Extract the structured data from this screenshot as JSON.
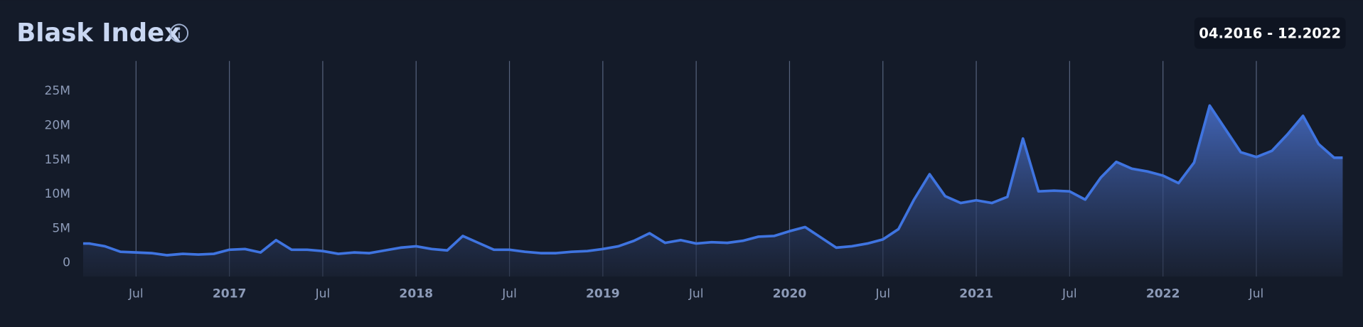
{
  "chart_data": {
    "type": "area",
    "title": "Blask Index",
    "date_range": "04.2016 - 12.2022",
    "x": [
      "2016-04",
      "2016-05",
      "2016-06",
      "2016-07",
      "2016-08",
      "2016-09",
      "2016-10",
      "2016-11",
      "2016-12",
      "2017-01",
      "2017-02",
      "2017-03",
      "2017-04",
      "2017-05",
      "2017-06",
      "2017-07",
      "2017-08",
      "2017-09",
      "2017-10",
      "2017-11",
      "2017-12",
      "2018-01",
      "2018-02",
      "2018-03",
      "2018-04",
      "2018-05",
      "2018-06",
      "2018-07",
      "2018-08",
      "2018-09",
      "2018-10",
      "2018-11",
      "2018-12",
      "2019-01",
      "2019-02",
      "2019-03",
      "2019-04",
      "2019-05",
      "2019-06",
      "2019-07",
      "2019-08",
      "2019-09",
      "2019-10",
      "2019-11",
      "2019-12",
      "2020-01",
      "2020-02",
      "2020-03",
      "2020-04",
      "2020-05",
      "2020-06",
      "2020-07",
      "2020-08",
      "2020-09",
      "2020-10",
      "2020-11",
      "2020-12",
      "2021-01",
      "2021-02",
      "2021-03",
      "2021-04",
      "2021-05",
      "2021-06",
      "2021-07",
      "2021-08",
      "2021-09",
      "2021-10",
      "2021-11",
      "2021-12",
      "2022-01",
      "2022-02",
      "2022-03",
      "2022-04",
      "2022-05",
      "2022-06",
      "2022-07",
      "2022-08",
      "2022-09",
      "2022-10",
      "2022-11",
      "2022-12"
    ],
    "series": [
      {
        "name": "Blask Index",
        "color": "#3f74e0",
        "values": [
          2800000,
          2400000,
          1600000,
          1500000,
          1400000,
          1100000,
          1300000,
          1200000,
          1300000,
          1900000,
          2000000,
          1500000,
          3300000,
          1900000,
          1900000,
          1700000,
          1300000,
          1500000,
          1400000,
          1800000,
          2200000,
          2400000,
          2000000,
          1800000,
          3900000,
          2900000,
          1900000,
          1900000,
          1600000,
          1400000,
          1400000,
          1600000,
          1700000,
          2000000,
          2400000,
          3200000,
          4300000,
          2900000,
          3300000,
          2800000,
          3000000,
          2900000,
          3200000,
          3800000,
          3900000,
          4600000,
          5200000,
          3700000,
          2200000,
          2400000,
          2800000,
          3400000,
          4900000,
          9200000,
          12900000,
          9700000,
          8700000,
          9100000,
          8700000,
          9600000,
          18100000,
          10400000,
          10500000,
          10400000,
          9200000,
          12400000,
          14700000,
          13700000,
          13300000,
          12700000,
          11600000,
          14600000,
          22900000,
          19500000,
          16100000,
          15400000,
          16300000,
          18700000,
          21400000,
          17300000,
          15300000
        ]
      }
    ],
    "ylim": [
      -2000000,
      29400000
    ],
    "yticks": [
      0,
      {
        "value": 5000000,
        "label": "5M"
      },
      {
        "value": 10000000,
        "label": "10M"
      },
      {
        "value": 15000000,
        "label": "15M"
      },
      {
        "value": 20000000,
        "label": "20M"
      },
      {
        "value": 25000000,
        "label": "25M"
      }
    ],
    "xticks": [
      {
        "value": "2016-07",
        "label": "Jul"
      },
      {
        "value": "2017-01",
        "label": "2017"
      },
      {
        "value": "2017-07",
        "label": "Jul"
      },
      {
        "value": "2018-01",
        "label": "2018"
      },
      {
        "value": "2018-07",
        "label": "Jul"
      },
      {
        "value": "2019-01",
        "label": "2019"
      },
      {
        "value": "2019-07",
        "label": "Jul"
      },
      {
        "value": "2020-01",
        "label": "2020"
      },
      {
        "value": "2020-07",
        "label": "Jul"
      },
      {
        "value": "2021-01",
        "label": "2021"
      },
      {
        "value": "2021-07",
        "label": "Jul"
      },
      {
        "value": "2022-01",
        "label": "2022"
      },
      {
        "value": "2022-07",
        "label": "Jul"
      }
    ],
    "grid": true
  }
}
